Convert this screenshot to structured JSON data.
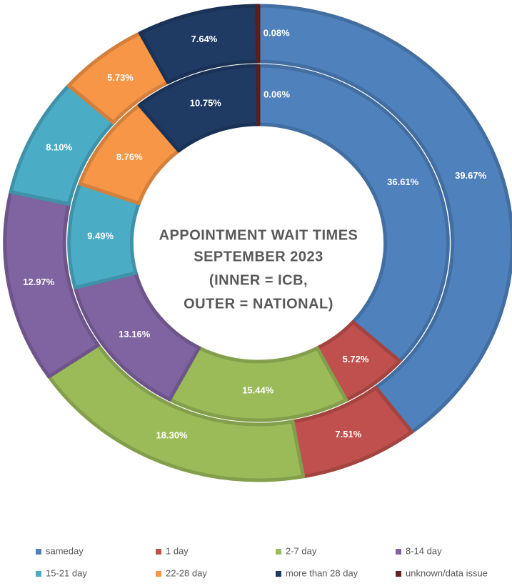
{
  "chart_data": {
    "type": "donut",
    "title": [
      "APPOINTMENT WAIT TIMES",
      "SEPTEMBER 2023",
      "(INNER = ICB,",
      "OUTER = NATIONAL)"
    ],
    "categories": [
      "sameday",
      "1 day",
      "2-7 day",
      "8-14 day",
      "15-21 day",
      "22-28 day",
      "more than 28 day",
      "unknown/data issue"
    ],
    "colors": [
      "#4f81bd",
      "#c0504d",
      "#9bbb59",
      "#8064a2",
      "#4bacc6",
      "#f79646",
      "#1f3b64",
      "#632523"
    ],
    "series": [
      {
        "name": "ICB",
        "values": [
          36.61,
          5.72,
          15.44,
          13.16,
          9.49,
          8.76,
          10.75,
          0.06
        ],
        "value_labels": [
          "36.61%",
          "5.72%",
          "15.44%",
          "13.16%",
          "9.49%",
          "8.76%",
          "10.75%",
          "0.06%"
        ]
      },
      {
        "name": "NATIONAL",
        "values": [
          39.67,
          7.51,
          18.3,
          12.97,
          8.1,
          5.73,
          7.64,
          0.08
        ],
        "value_labels": [
          "39.67%",
          "7.51%",
          "18.30%",
          "12.97%",
          "8.10%",
          "5.73%",
          "7.64%",
          "0.08%"
        ]
      }
    ],
    "legend": "bottom"
  }
}
